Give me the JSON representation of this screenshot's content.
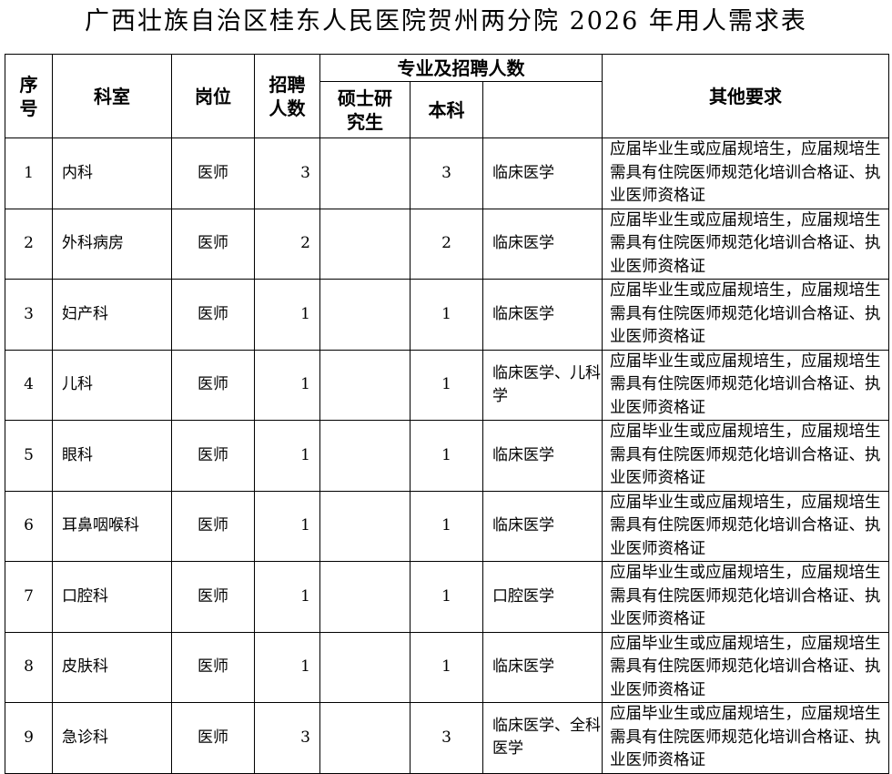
{
  "title": "广西壮族自治区桂东人民医院贺州两分院 2026 年用人需求表",
  "headers": {
    "seq": "序号",
    "dept": "科室",
    "post": "岗位",
    "count": "招聘人数",
    "major_group": "专业及招聘人数",
    "master": "硕士研究生",
    "bachelor": "本科",
    "other": "其他要求"
  },
  "rows": [
    {
      "seq": "1",
      "dept": "内科",
      "post": "医师",
      "count": "3",
      "master": "",
      "bachelor": "3",
      "major": "临床医学",
      "other": "应届毕业生或应届规培生，应届规培生需具有住院医师规范化培训合格证、执业医师资格证"
    },
    {
      "seq": "2",
      "dept": "外科病房",
      "post": "医师",
      "count": "2",
      "master": "",
      "bachelor": "2",
      "major": "临床医学",
      "other": "应届毕业生或应届规培生，应届规培生需具有住院医师规范化培训合格证、执业医师资格证"
    },
    {
      "seq": "3",
      "dept": "妇产科",
      "post": "医师",
      "count": "1",
      "master": "",
      "bachelor": "1",
      "major": "临床医学",
      "other": "应届毕业生或应届规培生，应届规培生需具有住院医师规范化培训合格证、执业医师资格证"
    },
    {
      "seq": "4",
      "dept": "儿科",
      "post": "医师",
      "count": "1",
      "master": "",
      "bachelor": "1",
      "major": "临床医学、儿科学",
      "other": "应届毕业生或应届规培生，应届规培生需具有住院医师规范化培训合格证、执业医师资格证"
    },
    {
      "seq": "5",
      "dept": "眼科",
      "post": "医师",
      "count": "1",
      "master": "",
      "bachelor": "1",
      "major": "临床医学",
      "other": "应届毕业生或应届规培生，应届规培生需具有住院医师规范化培训合格证、执业医师资格证"
    },
    {
      "seq": "6",
      "dept": "耳鼻咽喉科",
      "post": "医师",
      "count": "1",
      "master": "",
      "bachelor": "1",
      "major": "临床医学",
      "other": "应届毕业生或应届规培生，应届规培生需具有住院医师规范化培训合格证、执业医师资格证"
    },
    {
      "seq": "7",
      "dept": "口腔科",
      "post": "医师",
      "count": "1",
      "master": "",
      "bachelor": "1",
      "major": "口腔医学",
      "other": "应届毕业生或应届规培生，应届规培生需具有住院医师规范化培训合格证、执业医师资格证"
    },
    {
      "seq": "8",
      "dept": "皮肤科",
      "post": "医师",
      "count": "1",
      "master": "",
      "bachelor": "1",
      "major": "临床医学",
      "other": "应届毕业生或应届规培生，应届规培生需具有住院医师规范化培训合格证、执业医师资格证"
    },
    {
      "seq": "9",
      "dept": "急诊科",
      "post": "医师",
      "count": "3",
      "master": "",
      "bachelor": "3",
      "major": "临床医学、全科医学",
      "other": "应届毕业生或应届规培生，应届规培生需具有住院医师规范化培训合格证、执业医师资格证"
    }
  ]
}
